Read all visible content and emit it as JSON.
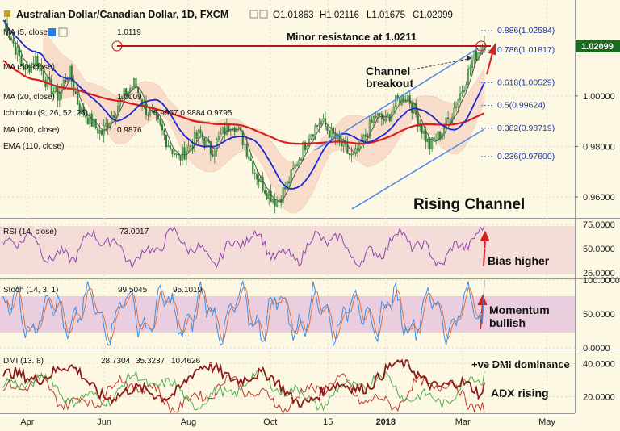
{
  "header": {
    "title": "Australian Dollar/Canadian Dollar, 1D, FXCM",
    "o": "O1.01863",
    "h": "H1.02116",
    "l": "L1.01675",
    "c": "C1.02099"
  },
  "price_tag": "1.02099",
  "indicators": [
    {
      "label": "MA (5, close)",
      "value": "1.0119"
    },
    {
      "label": "MA (50, close)",
      "value": ""
    },
    {
      "label": "MA (20, close)",
      "value": "1.0009"
    },
    {
      "label": "Ichimoku (9, 26, 52, 26)",
      "value": "0.9957 0.9884 0.9795"
    },
    {
      "label": "MA (200, close)",
      "value": "0.9876"
    },
    {
      "label": "EMA (110, close)",
      "value": ""
    }
  ],
  "annotations": {
    "minor_resistance": "Minor resistance at 1.0211",
    "channel_breakout_1": "Channel",
    "channel_breakout_2": "breakout",
    "rising_channel": "Rising Channel",
    "bias_higher": "Bias higher",
    "momentum_1": "Momentum",
    "momentum_2": "bullish",
    "dmi_dominance": "+ve DMI dominance",
    "adx_rising": "ADX rising"
  },
  "fib_levels": [
    {
      "label": "0.886(1.02584)",
      "value": 1.02584
    },
    {
      "label": "0.786(1.01817)",
      "value": 1.01817
    },
    {
      "label": "0.618(1.00529)",
      "value": 1.00529
    },
    {
      "label": "0.5(0.99624)",
      "value": 0.99624
    },
    {
      "label": "0.382(0.98719)",
      "value": 0.98719
    },
    {
      "label": "0.236(0.97600)",
      "value": 0.976
    }
  ],
  "rsi": {
    "label": "RSI (14, close)",
    "value": "73.0017",
    "ticks": [
      "75.0000",
      "50.0000",
      "25.0000"
    ]
  },
  "stoch": {
    "label": "Stoch (14, 3, 1)",
    "k": "99.5045",
    "d": "95.1019",
    "ticks": [
      "100.0000",
      "50.0000",
      "0.0000"
    ]
  },
  "dmi": {
    "label": "DMI (13, 8)",
    "plus": "28.7304",
    "minus": "35.3237",
    "adx": "10.4626",
    "ticks": [
      "40.0000",
      "20.0000"
    ]
  },
  "colors": {
    "candle": "#2e7d32",
    "ma5": "#555555",
    "ma20": "#1a27d4",
    "ma200": "#d91e1e",
    "channel": "#4a86e8",
    "resistance": "#b01818",
    "rsi_line": "#8e44ad",
    "stoch_k": "#3a8ee6",
    "stoch_d": "#e0703a",
    "dmi_adx": "#8b1a1a",
    "dmi_plus": "#4caf50",
    "dmi_minus": "#c0392b"
  },
  "chart_data": [
    {
      "type": "candlestick",
      "title": "Australian Dollar/Canadian Dollar, 1D, FXCM",
      "x_ticks": [
        "Apr",
        "Jun",
        "Aug",
        "Oct",
        "15",
        "2018",
        "Mar",
        "May"
      ],
      "y_ticks": [
        1.0,
        0.98,
        0.96
      ],
      "ylim": [
        0.952,
        1.038
      ],
      "last_close": 1.02099,
      "resistance": 1.0211,
      "approx_closes": [
        1.03,
        1.02,
        1.01,
        1.015,
        1.005,
        1.0,
        1.01,
        0.995,
        0.99,
        0.985,
        0.993,
        1.0,
        1.005,
        0.995,
        0.99,
        0.982,
        0.975,
        0.98,
        0.985,
        0.978,
        0.985,
        0.99,
        0.982,
        0.97,
        0.963,
        0.958,
        0.965,
        0.975,
        0.985,
        0.99,
        0.985,
        0.98,
        0.975,
        0.983,
        0.992,
        0.99,
        0.998,
        1.0,
        0.99,
        0.98,
        0.985,
        0.993,
        1.003,
        1.015,
        1.021
      ]
    },
    {
      "type": "line",
      "title": "RSI (14, close)",
      "y_ticks": [
        75,
        50,
        25
      ],
      "ylim": [
        20,
        80
      ],
      "last": 73.0017
    },
    {
      "type": "line",
      "title": "Stoch (14, 3, 1)",
      "y_ticks": [
        100,
        50,
        0
      ],
      "ylim": [
        0,
        100
      ],
      "k_last": 99.5045,
      "d_last": 95.1019
    },
    {
      "type": "line",
      "title": "DMI (13, 8)",
      "y_ticks": [
        40,
        20
      ],
      "ylim": [
        10,
        48
      ],
      "plus_di": 28.7304,
      "minus_di": 35.3237,
      "adx": 10.4626
    }
  ]
}
